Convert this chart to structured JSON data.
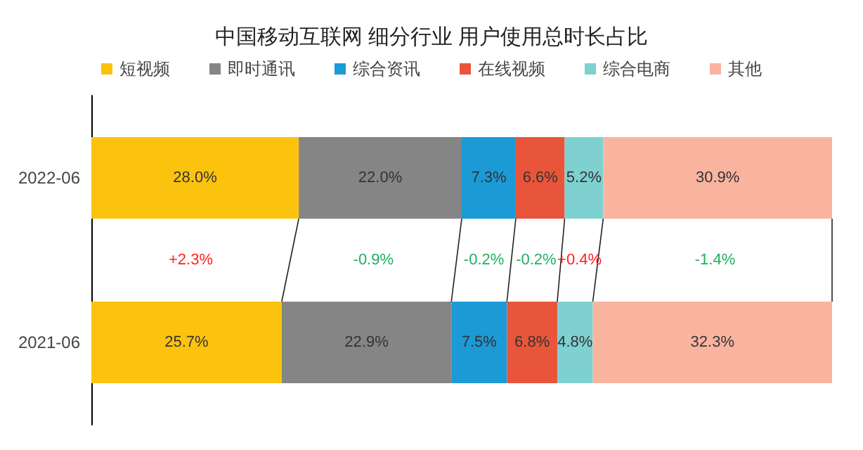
{
  "chart_data": {
    "type": "bar",
    "orientation": "horizontal",
    "stacked": true,
    "title": "中国移动互联网 细分行业 用户使用总时长占比",
    "categories": [
      "2022-06",
      "2021-06"
    ],
    "xlim": [
      0,
      100
    ],
    "tick_labels": "y",
    "grid": false,
    "legend": "top",
    "series": [
      {
        "name": "短视频",
        "color": "#fcc30e",
        "values": [
          28.0,
          25.7
        ],
        "value_labels": [
          "28.0%",
          "25.7%"
        ]
      },
      {
        "name": "即时通讯",
        "color": "#858585",
        "values": [
          22.0,
          22.9
        ],
        "value_labels": [
          "22.0%",
          "22.9%"
        ]
      },
      {
        "name": "综合资讯",
        "color": "#1b9ad6",
        "values": [
          7.3,
          7.5
        ],
        "value_labels": [
          "7.3%",
          "7.5%"
        ]
      },
      {
        "name": "在线视频",
        "color": "#e8553a",
        "values": [
          6.6,
          6.8
        ],
        "value_labels": [
          "6.6%",
          "6.8%"
        ]
      },
      {
        "name": "综合电商",
        "color": "#7fd1d1",
        "values": [
          5.2,
          4.8
        ],
        "value_labels": [
          "5.2%",
          "4.8%"
        ]
      },
      {
        "name": "其他",
        "color": "#f9b4a0",
        "values": [
          30.9,
          32.3
        ],
        "value_labels": [
          "30.9%",
          "32.3%"
        ]
      }
    ],
    "annotations": [
      "+2.3%",
      "-0.9%",
      "-0.2%",
      "-0.2%",
      "+0.4%",
      "-1.4%"
    ]
  }
}
